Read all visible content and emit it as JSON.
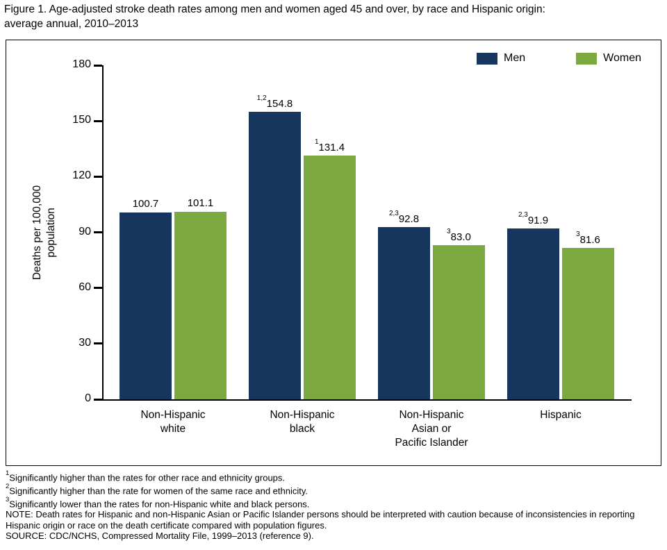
{
  "title": "Figure 1. Age-adjusted stroke death rates among men and women aged 45 and over, by race and Hispanic origin:\naverage annual, 2010–2013",
  "chart_data": {
    "type": "bar",
    "title": "Age-adjusted stroke death rates among men and women aged 45 and over, by race and Hispanic origin: average annual, 2010–2013",
    "categories": [
      "Non-Hispanic\nwhite",
      "Non-Hispanic\nblack",
      "Non-Hispanic\nAsian or\nPacific Islander",
      "Hispanic"
    ],
    "series": [
      {
        "name": "Men",
        "color": "#17365D",
        "values": [
          100.7,
          154.8,
          92.8,
          91.9
        ],
        "value_superscripts": [
          "",
          "1,2",
          "2,3",
          "2,3"
        ]
      },
      {
        "name": "Women",
        "color": "#7CA840",
        "values": [
          101.1,
          131.4,
          83.0,
          81.6
        ],
        "value_superscripts": [
          "",
          "1",
          "3",
          "3"
        ]
      }
    ],
    "xlabel": "",
    "ylabel": "Deaths per 100,000\npopulation",
    "ylim": [
      0,
      180
    ],
    "yticks": [
      0,
      30,
      60,
      90,
      120,
      150,
      180
    ],
    "legend_position": "top-right",
    "grid": false
  },
  "footnotes": [
    {
      "sup": "1",
      "text": "Significantly higher than the rates for other race and ethnicity groups."
    },
    {
      "sup": "2",
      "text": "Significantly higher than the rate for women of the same race and ethnicity."
    },
    {
      "sup": "3",
      "text": "Significantly lower than the rates for non-Hispanic white and black persons."
    },
    {
      "sup": "",
      "text": "NOTE: Death rates for Hispanic and non-Hispanic Asian or Pacific Islander persons should be interpreted with caution because of inconsistencies in reporting"
    },
    {
      "sup": "",
      "text": "Hispanic origin or race on the death certificate compared with population figures."
    },
    {
      "sup": "",
      "text": "SOURCE: CDC/NCHS, Compressed Mortality File, 1999–2013 (reference 9)."
    }
  ]
}
